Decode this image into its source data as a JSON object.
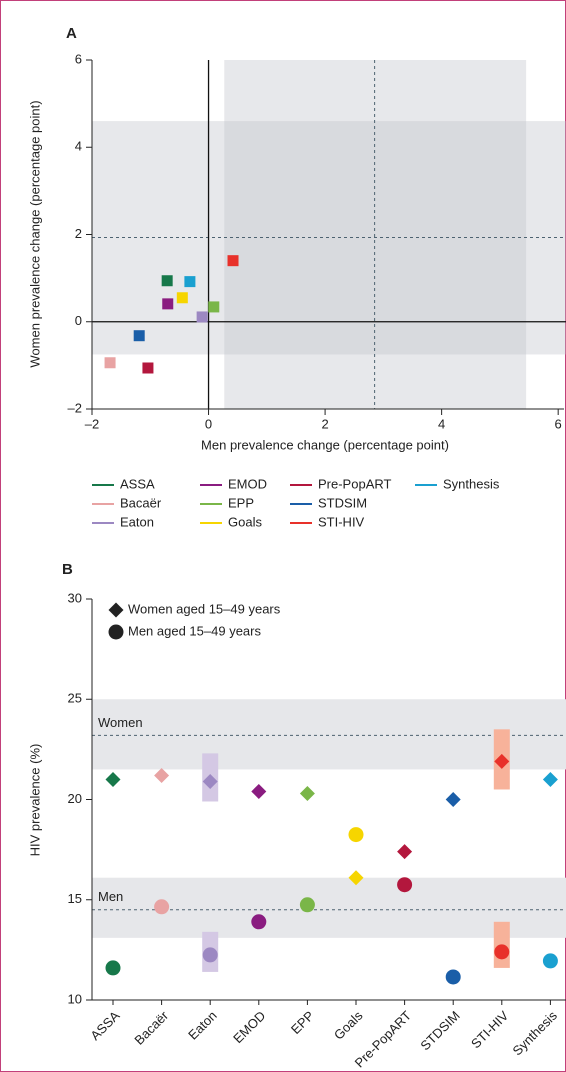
{
  "chart_data": [
    {
      "type": "scatter",
      "panel_label": "A",
      "xlabel": "Men prevalence change (percentage point)",
      "ylabel": "Women prevalence change (percentage point)",
      "xlim": [
        -2,
        6.1
      ],
      "ylim": [
        -2,
        6
      ],
      "xticks": [
        {
          "value": -2,
          "label": "–2"
        },
        0,
        2,
        4,
        6
      ],
      "yticks": [
        {
          "value": -2,
          "label": "–2"
        },
        0,
        2,
        4,
        6
      ],
      "shaded_x": [
        0.27,
        5.45
      ],
      "shaded_y": [
        -0.75,
        4.6
      ],
      "dashed_x": 2.85,
      "dashed_y": 1.93,
      "series": [
        {
          "name": "ASSA",
          "color": "#17784a",
          "x": [
            -0.71
          ],
          "values": [
            0.94
          ]
        },
        {
          "name": "Bacaër",
          "color": "#e8a3a3",
          "x": [
            -1.69
          ],
          "values": [
            -0.94
          ]
        },
        {
          "name": "Eaton",
          "color": "#9c88c2",
          "x": [
            -0.11
          ],
          "values": [
            0.11
          ]
        },
        {
          "name": "EMOD",
          "color": "#8a1c80",
          "x": [
            -0.7
          ],
          "values": [
            0.41
          ]
        },
        {
          "name": "EPP",
          "color": "#7ab648",
          "x": [
            0.09
          ],
          "values": [
            0.34
          ]
        },
        {
          "name": "Goals",
          "color": "#f6d500",
          "x": [
            -0.45
          ],
          "values": [
            0.55
          ]
        },
        {
          "name": "Pre-PopART",
          "color": "#b3173d",
          "x": [
            -1.04
          ],
          "values": [
            -1.06
          ]
        },
        {
          "name": "STDSIM",
          "color": "#1a5ea8",
          "x": [
            -1.19
          ],
          "values": [
            -0.32
          ]
        },
        {
          "name": "STI-HIV",
          "color": "#e8312a",
          "x": [
            0.42
          ],
          "values": [
            1.4
          ]
        },
        {
          "name": "Synthesis",
          "color": "#1aa0d0",
          "x": [
            -0.32
          ],
          "values": [
            0.92
          ]
        }
      ]
    },
    {
      "type": "dot",
      "panel_label": "B",
      "ylabel": "HIV prevalence (%)",
      "ylim": [
        10,
        30
      ],
      "yticks": [
        10,
        15,
        20,
        25,
        30
      ],
      "categories": [
        "ASSA",
        "Bacaër",
        "Eaton",
        "EMOD",
        "EPP",
        "Goals",
        "Pre-PopART",
        "STDSIM",
        "STI-HIV",
        "Synthesis"
      ],
      "colors": [
        "#17784a",
        "#e8a3a3",
        "#9c88c2",
        "#8a1c80",
        "#7ab648",
        "#f6d500",
        "#b3173d",
        "#1a5ea8",
        "#e8312a",
        "#1aa0d0"
      ],
      "range_colors": [
        null,
        null,
        "#d4c8e4",
        null,
        null,
        null,
        null,
        null,
        "#f7b29a",
        null
      ],
      "bands": [
        {
          "label": "Women",
          "range": [
            21.5,
            25
          ],
          "line": 23.2
        },
        {
          "label": "Men",
          "range": [
            13.1,
            16.1
          ],
          "line": 14.5
        }
      ],
      "series": [
        {
          "name": "Women aged 15–49 years",
          "marker": "diamond",
          "color": "#222222",
          "values": [
            21.0,
            21.2,
            20.9,
            20.4,
            20.3,
            16.1,
            17.4,
            20.0,
            21.9,
            21.0
          ],
          "ranges": [
            null,
            null,
            [
              19.9,
              22.3
            ],
            null,
            null,
            null,
            null,
            null,
            [
              20.5,
              23.5
            ],
            null
          ]
        },
        {
          "name": "Men aged 15–49 years",
          "marker": "circle",
          "color": "#222222",
          "values": [
            11.6,
            14.65,
            12.25,
            13.9,
            14.75,
            18.25,
            15.75,
            11.15,
            12.4,
            11.95
          ],
          "ranges": [
            null,
            null,
            [
              11.4,
              13.4
            ],
            null,
            null,
            null,
            null,
            null,
            [
              11.6,
              13.9
            ],
            null
          ]
        }
      ]
    }
  ]
}
